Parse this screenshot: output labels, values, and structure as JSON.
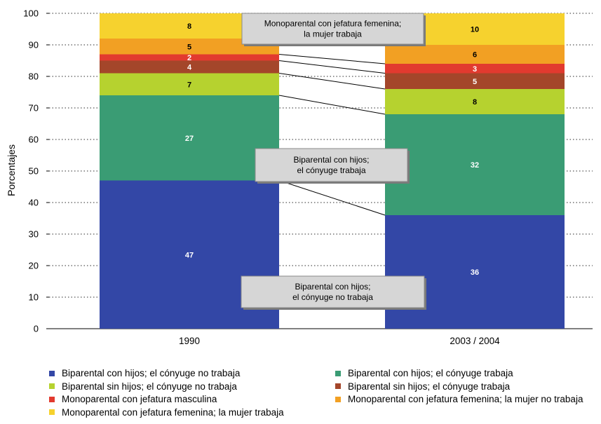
{
  "chart_data": {
    "type": "bar",
    "stacked": true,
    "categories": [
      "1990",
      "2003 / 2004"
    ],
    "ylabel": "Porcentajes",
    "ylim": [
      0,
      100
    ],
    "yticks": [
      0,
      10,
      20,
      30,
      40,
      50,
      60,
      70,
      80,
      90,
      100
    ],
    "grid": "dotted horizontal",
    "legend_position": "bottom",
    "series": [
      {
        "name": "Biparental con hijos; el cónyuge no trabaja",
        "color": "#3347a6",
        "values": [
          47,
          36
        ],
        "label_color": "#ffffff"
      },
      {
        "name": "Biparental con hijos; el cónyuge trabaja",
        "color": "#3a9c74",
        "values": [
          27,
          32
        ],
        "label_color": "#ffffff"
      },
      {
        "name": "Biparental sin hijos; el cónyuge no trabaja",
        "color": "#b6d22f",
        "values": [
          7,
          8
        ],
        "label_color": "#000000"
      },
      {
        "name": "Biparental sin hijos; el cónyuge trabaja",
        "color": "#a4462a",
        "values": [
          4,
          5
        ],
        "label_color": "#ffffff"
      },
      {
        "name": "Monoparental con jefatura masculina",
        "color": "#e23a2f",
        "values": [
          2,
          3
        ],
        "label_color": "#ffffff"
      },
      {
        "name": "Monoparental con jefatura femenina; la mujer no trabaja",
        "color": "#f2a023",
        "values": [
          5,
          6
        ],
        "label_color": "#000000"
      },
      {
        "name": "Monoparental con jefatura femenina; la mujer trabaja",
        "color": "#f6d22e",
        "values": [
          8,
          10
        ],
        "label_color": "#000000"
      }
    ],
    "annotations": [
      {
        "lines": [
          "Monoparental con jefatura femenina;",
          "la mujer trabaja"
        ],
        "series": 6
      },
      {
        "lines": [
          "Biparental con hijos;",
          "el cónyuge trabaja"
        ],
        "series": 1
      },
      {
        "lines": [
          "Biparental con hijos;",
          "el cónyuge no trabaja"
        ],
        "series": 0
      }
    ]
  }
}
